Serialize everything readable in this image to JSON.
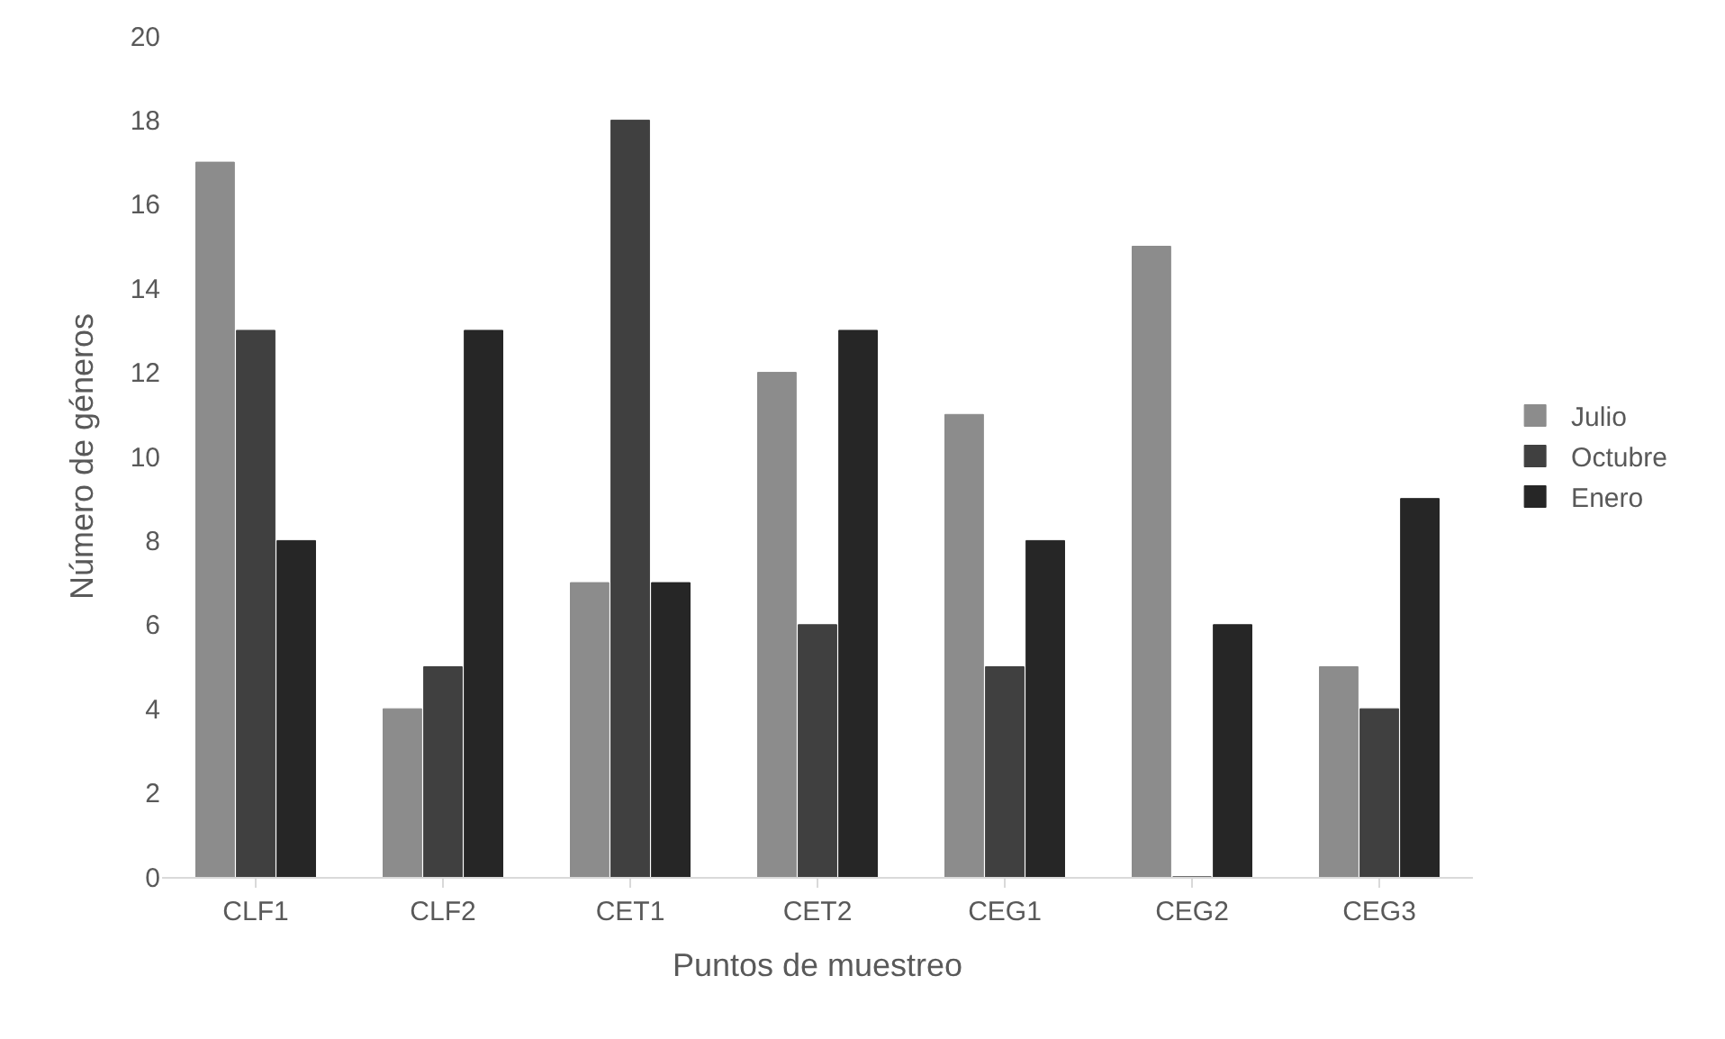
{
  "chart_data": {
    "type": "bar",
    "xlabel": "Puntos de muestreo",
    "ylabel": "Número de géneros",
    "categories": [
      "CLF1",
      "CLF2",
      "CET1",
      "CET2",
      "CEG1",
      "CEG2",
      "CEG3"
    ],
    "series": [
      {
        "name": "Julio",
        "color": "#8c8c8c",
        "values": [
          17,
          4,
          7,
          12,
          11,
          15,
          5
        ]
      },
      {
        "name": "Octubre",
        "color": "#404040",
        "values": [
          13,
          5,
          18,
          6,
          5,
          0,
          4
        ]
      },
      {
        "name": "Enero",
        "color": "#262626",
        "values": [
          8,
          13,
          7,
          13,
          8,
          6,
          9
        ]
      }
    ],
    "ylim": [
      0,
      20
    ],
    "yticks": [
      0,
      2,
      4,
      6,
      8,
      10,
      12,
      14,
      16,
      18,
      20
    ],
    "legend": "right"
  }
}
